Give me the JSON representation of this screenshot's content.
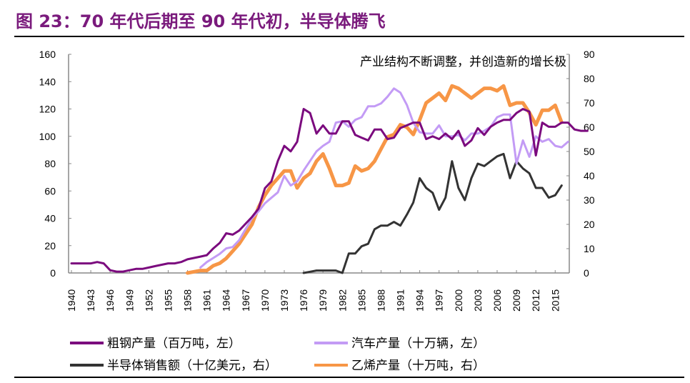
{
  "title": "图 23：70 年代后期至 90 年代初，半导体腾飞",
  "chart_data": {
    "type": "line",
    "annotation": "产业结构不断调整，并创造新的增长极",
    "x_tick_labels": [
      "1940",
      "1943",
      "1946",
      "1949",
      "1952",
      "1955",
      "1958",
      "1961",
      "1964",
      "1967",
      "1970",
      "1973",
      "1976",
      "1979",
      "1982",
      "1985",
      "1988",
      "1991",
      "1994",
      "1997",
      "2000",
      "2003",
      "2006",
      "2009",
      "2012",
      "2015"
    ],
    "xlim": [
      1940,
      2017
    ],
    "ylim_left": [
      0,
      160
    ],
    "ylim_right": [
      0,
      90
    ],
    "left_ticks": [
      "0",
      "20",
      "40",
      "60",
      "80",
      "100",
      "120",
      "140",
      "160"
    ],
    "right_ticks": [
      "0",
      "10",
      "20",
      "30",
      "40",
      "50",
      "60",
      "70",
      "80",
      "90"
    ],
    "grid": false,
    "legend_position": "bottom",
    "series": [
      {
        "name": "粗钢产量（百万吨，左）",
        "axis": "left",
        "color": "#7b0a7e",
        "width": 3,
        "start": 1940,
        "values": [
          7,
          7,
          7,
          7,
          8,
          7,
          2,
          1,
          1,
          2,
          3,
          3,
          4,
          5,
          6,
          7,
          7,
          8,
          10,
          11,
          12,
          13,
          18,
          22,
          29,
          28,
          31,
          36,
          41,
          47,
          62,
          67,
          82,
          93,
          89,
          96,
          120,
          117,
          102,
          108,
          102,
          102,
          111,
          111,
          101,
          99,
          97,
          105,
          105,
          98,
          99,
          106,
          108,
          110,
          110,
          98,
          100,
          98,
          102,
          98,
          104,
          93,
          97,
          106,
          101,
          107,
          110,
          112,
          112,
          117,
          120,
          118,
          86,
          110,
          107,
          107,
          110,
          110,
          105,
          104,
          104
        ]
      },
      {
        "name": "汽车产量（十万辆，左）",
        "axis": "left",
        "color": "#c39bf5",
        "width": 3,
        "start": 1960,
        "values": [
          4,
          8,
          11,
          14,
          18,
          19,
          24,
          32,
          40,
          45,
          51,
          55,
          59,
          71,
          64,
          67,
          75,
          82,
          89,
          93,
          96,
          110,
          111,
          107,
          112,
          114,
          122,
          122,
          124,
          129,
          135,
          132,
          123,
          110,
          103,
          102,
          102,
          108,
          100,
          100,
          101,
          97,
          102,
          102,
          104,
          107,
          114,
          116,
          116,
          80,
          97,
          85,
          100,
          96,
          98,
          93,
          92,
          96
        ]
      },
      {
        "name": "半导体销售额（十亿美元，右）",
        "axis": "right",
        "color": "#333333",
        "width": 3,
        "start": 1976,
        "values": [
          0,
          0.5,
          1,
          1,
          1,
          1,
          0,
          8,
          8,
          11,
          12,
          18,
          19.5,
          19.5,
          21,
          19.5,
          24,
          29,
          39,
          35,
          33,
          26,
          31,
          46,
          35,
          30,
          39,
          45,
          44,
          46,
          48,
          49,
          39,
          46,
          43,
          41,
          35,
          35,
          31,
          32,
          36
        ]
      },
      {
        "name": "乙烯产量（十万吨，右）",
        "axis": "right",
        "color": "#f79646",
        "width": 5,
        "start": 1958,
        "values": [
          0,
          0.5,
          1,
          1,
          3,
          4,
          6,
          9,
          12,
          16,
          20,
          27,
          32,
          36,
          39,
          42,
          42,
          35,
          39,
          41,
          46,
          49,
          43,
          36,
          36,
          37,
          44,
          42,
          43,
          46,
          51,
          56,
          57,
          61,
          60,
          57,
          63,
          70,
          72,
          74,
          71,
          77,
          76,
          74,
          72,
          74,
          76,
          76,
          75,
          77,
          69,
          70,
          70,
          66,
          61,
          67,
          67,
          69,
          62
        ]
      }
    ]
  }
}
